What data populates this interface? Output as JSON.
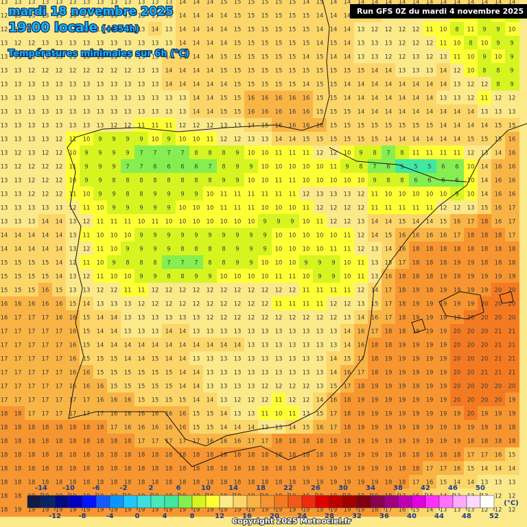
{
  "header": {
    "date": "mardi 18 novembre 2025",
    "time": "19:00 locale",
    "lead": "(+354h)",
    "subtitle": "Températures minimales sur 6h (°C)",
    "run": "Run GFS 0Z du mardi 4 novembre 2025"
  },
  "legend": {
    "unit": "(°C)",
    "ticks": [
      -14,
      -12,
      -10,
      -8,
      -6,
      -4,
      -2,
      0,
      2,
      4,
      6,
      8,
      10,
      12,
      14,
      16,
      18,
      20,
      22,
      24,
      26,
      28,
      30,
      32,
      34,
      36,
      38,
      40,
      42,
      44,
      46,
      48,
      50,
      52
    ],
    "colors": [
      "#141a48",
      "#0a2466",
      "#000a80",
      "#0000c0",
      "#0014ff",
      "#145aff",
      "#0a96ff",
      "#1ec8ff",
      "#3ce0e0",
      "#46eab8",
      "#40e8a0",
      "#86ee50",
      "#d6f520",
      "#ffff36",
      "#fce98a",
      "#fdd66a",
      "#f9b446",
      "#f79530",
      "#f47a22",
      "#f05a18",
      "#ee2a10",
      "#e00000",
      "#c00000",
      "#a00000",
      "#800010",
      "#8c0050",
      "#a00080",
      "#c000b0",
      "#e000e0",
      "#ff30ff",
      "#ff70ff",
      "#ffa8ff",
      "#ffd8ff",
      "#ffffff"
    ]
  },
  "footer": {
    "copyright": "Copyright 2025 Meteociel.fr"
  },
  "grid": {
    "rows": [
      [
        13,
        13,
        13,
        13,
        13,
        13,
        13,
        13,
        13,
        13,
        13,
        13,
        13,
        14,
        14,
        14,
        15,
        15,
        15,
        15,
        15,
        15,
        14,
        15,
        14,
        14,
        14,
        14,
        14,
        14,
        14,
        14,
        14,
        14,
        14,
        14,
        14,
        14
      ],
      [
        12,
        13,
        13,
        13,
        13,
        13,
        13,
        13,
        13,
        13,
        13,
        13,
        13,
        14,
        14,
        14,
        14,
        15,
        15,
        15,
        15,
        15,
        15,
        14,
        14,
        14,
        14,
        14,
        13,
        13,
        12,
        12,
        12,
        11,
        10,
        9,
        10,
        9
      ],
      [
        12,
        12,
        13,
        13,
        13,
        13,
        13,
        13,
        13,
        13,
        13,
        14,
        13,
        14,
        14,
        14,
        14,
        15,
        15,
        15,
        15,
        15,
        15,
        14,
        14,
        14,
        13,
        12,
        12,
        12,
        12,
        11,
        10,
        8,
        11,
        9,
        9,
        10
      ],
      [
        13,
        12,
        12,
        13,
        13,
        13,
        13,
        13,
        13,
        13,
        13,
        13,
        13,
        14,
        14,
        14,
        14,
        15,
        15,
        15,
        15,
        15,
        15,
        14,
        15,
        14,
        13,
        13,
        13,
        12,
        12,
        12,
        11,
        10,
        8,
        10,
        9,
        9
      ],
      [
        13,
        13,
        13,
        13,
        13,
        13,
        13,
        13,
        13,
        13,
        13,
        13,
        14,
        14,
        14,
        14,
        15,
        15,
        15,
        15,
        15,
        15,
        14,
        15,
        14,
        14,
        13,
        13,
        12,
        12,
        13,
        12,
        13,
        11,
        10,
        9,
        10,
        9
      ],
      [
        13,
        13,
        12,
        12,
        12,
        12,
        12,
        12,
        12,
        12,
        13,
        13,
        14,
        14,
        14,
        14,
        15,
        15,
        15,
        15,
        15,
        15,
        15,
        15,
        15,
        15,
        15,
        14,
        14,
        13,
        13,
        13,
        14,
        12,
        10,
        8,
        8,
        9
      ],
      [
        13,
        13,
        13,
        13,
        13,
        13,
        13,
        13,
        13,
        13,
        13,
        13,
        14,
        14,
        14,
        14,
        14,
        15,
        15,
        15,
        15,
        15,
        14,
        15,
        15,
        14,
        14,
        14,
        14,
        14,
        14,
        14,
        14,
        13,
        12,
        12,
        8,
        9
      ],
      [
        13,
        13,
        13,
        13,
        13,
        13,
        13,
        13,
        13,
        13,
        13,
        13,
        13,
        13,
        14,
        14,
        15,
        15,
        16,
        16,
        16,
        16,
        16,
        15,
        15,
        14,
        14,
        14,
        14,
        14,
        14,
        14,
        13,
        13,
        12,
        11,
        12,
        12
      ],
      [
        13,
        13,
        13,
        13,
        13,
        13,
        13,
        13,
        13,
        13,
        13,
        13,
        13,
        13,
        14,
        14,
        15,
        15,
        16,
        16,
        16,
        16,
        16,
        15,
        15,
        15,
        14,
        14,
        14,
        14,
        14,
        14,
        14,
        14,
        14,
        13,
        13,
        13
      ],
      [
        13,
        13,
        13,
        13,
        13,
        13,
        13,
        13,
        12,
        12,
        11,
        11,
        11,
        12,
        12,
        12,
        13,
        13,
        14,
        15,
        16,
        16,
        16,
        16,
        15,
        15,
        15,
        15,
        15,
        15,
        15,
        15,
        14,
        14,
        14,
        14,
        15,
        15
      ],
      [
        13,
        13,
        13,
        13,
        12,
        11,
        10,
        9,
        9,
        9,
        9,
        10,
        9,
        10,
        10,
        11,
        12,
        12,
        13,
        13,
        14,
        14,
        15,
        15,
        15,
        15,
        15,
        15,
        14,
        14,
        14,
        14,
        14,
        14,
        15,
        15,
        15,
        16
      ],
      [
        13,
        12,
        13,
        12,
        12,
        10,
        9,
        9,
        9,
        9,
        7,
        7,
        7,
        7,
        8,
        8,
        8,
        9,
        10,
        10,
        11,
        11,
        11,
        12,
        12,
        10,
        9,
        8,
        7,
        8,
        11,
        11,
        11,
        11,
        12,
        13,
        14,
        16
      ],
      [
        13,
        12,
        12,
        12,
        12,
        11,
        9,
        9,
        9,
        7,
        7,
        6,
        6,
        6,
        6,
        7,
        8,
        9,
        9,
        10,
        10,
        10,
        10,
        10,
        11,
        9,
        8,
        7,
        6,
        5,
        5,
        5,
        6,
        6,
        10,
        14,
        16,
        16
      ],
      [
        13,
        13,
        12,
        12,
        12,
        10,
        9,
        9,
        8,
        8,
        8,
        8,
        8,
        8,
        8,
        8,
        9,
        9,
        10,
        10,
        11,
        11,
        10,
        10,
        10,
        10,
        10,
        9,
        8,
        8,
        6,
        6,
        6,
        6,
        10,
        14,
        16,
        16
      ],
      [
        13,
        13,
        12,
        12,
        12,
        11,
        10,
        9,
        9,
        8,
        8,
        9,
        9,
        9,
        9,
        10,
        11,
        11,
        11,
        11,
        11,
        11,
        12,
        13,
        13,
        13,
        12,
        11,
        10,
        10,
        10,
        10,
        10,
        9,
        10,
        14,
        16,
        16
      ],
      [
        13,
        13,
        13,
        13,
        13,
        12,
        11,
        10,
        9,
        9,
        9,
        9,
        9,
        10,
        10,
        10,
        11,
        11,
        11,
        10,
        10,
        10,
        11,
        12,
        12,
        12,
        12,
        11,
        11,
        11,
        11,
        11,
        12,
        12,
        13,
        15,
        16,
        17
      ],
      [
        13,
        13,
        13,
        14,
        14,
        13,
        12,
        11,
        11,
        11,
        10,
        11,
        10,
        10,
        10,
        10,
        10,
        10,
        10,
        9,
        9,
        9,
        10,
        11,
        12,
        12,
        13,
        14,
        14,
        15,
        14,
        14,
        15,
        16,
        17,
        18,
        16,
        17
      ],
      [
        14,
        14,
        14,
        14,
        14,
        13,
        11,
        10,
        10,
        10,
        9,
        9,
        9,
        9,
        9,
        9,
        9,
        9,
        9,
        9,
        10,
        10,
        10,
        10,
        10,
        11,
        12,
        14,
        15,
        16,
        16,
        16,
        16,
        17,
        18,
        18,
        18,
        17
      ],
      [
        14,
        14,
        14,
        14,
        14,
        13,
        12,
        11,
        10,
        9,
        9,
        9,
        9,
        8,
        8,
        8,
        8,
        9,
        9,
        9,
        10,
        10,
        10,
        10,
        11,
        11,
        12,
        13,
        14,
        16,
        18,
        18,
        18,
        18,
        18,
        18,
        18,
        18
      ],
      [
        15,
        15,
        15,
        15,
        14,
        12,
        11,
        10,
        9,
        8,
        8,
        8,
        7,
        7,
        7,
        8,
        8,
        9,
        9,
        10,
        10,
        10,
        9,
        9,
        9,
        10,
        11,
        13,
        15,
        17,
        18,
        18,
        18,
        19,
        19,
        18,
        18,
        18
      ],
      [
        15,
        15,
        15,
        15,
        14,
        13,
        12,
        11,
        10,
        10,
        9,
        9,
        8,
        8,
        9,
        9,
        10,
        10,
        10,
        10,
        11,
        11,
        10,
        9,
        9,
        10,
        11,
        13,
        16,
        18,
        18,
        18,
        19,
        19,
        19,
        19,
        19,
        19
      ],
      [
        15,
        15,
        15,
        16,
        15,
        13,
        13,
        12,
        12,
        11,
        11,
        12,
        12,
        12,
        12,
        12,
        12,
        12,
        12,
        12,
        12,
        12,
        11,
        11,
        11,
        11,
        12,
        14,
        17,
        18,
        19,
        18,
        19,
        19,
        19,
        19,
        20,
        20
      ],
      [
        16,
        16,
        16,
        16,
        16,
        15,
        14,
        13,
        13,
        13,
        12,
        12,
        12,
        12,
        12,
        12,
        12,
        12,
        12,
        12,
        11,
        11,
        11,
        11,
        12,
        12,
        13,
        15,
        17,
        18,
        19,
        19,
        19,
        19,
        19,
        20,
        20,
        20
      ],
      [
        16,
        17,
        17,
        17,
        16,
        16,
        15,
        14,
        14,
        13,
        13,
        13,
        13,
        13,
        13,
        12,
        12,
        12,
        12,
        12,
        12,
        12,
        12,
        12,
        12,
        13,
        14,
        16,
        17,
        18,
        19,
        19,
        19,
        19,
        20,
        20,
        20,
        20
      ],
      [
        17,
        17,
        17,
        17,
        17,
        16,
        15,
        14,
        14,
        13,
        13,
        13,
        14,
        14,
        13,
        13,
        13,
        13,
        13,
        13,
        13,
        13,
        13,
        13,
        13,
        14,
        16,
        17,
        18,
        18,
        19,
        19,
        19,
        20,
        20,
        20,
        21,
        21
      ],
      [
        17,
        17,
        17,
        17,
        17,
        16,
        15,
        14,
        14,
        14,
        14,
        14,
        14,
        14,
        14,
        14,
        14,
        14,
        13,
        13,
        13,
        13,
        13,
        13,
        13,
        14,
        16,
        18,
        18,
        19,
        19,
        19,
        19,
        20,
        20,
        20,
        21,
        21
      ],
      [
        17,
        17,
        17,
        17,
        17,
        16,
        15,
        15,
        15,
        14,
        14,
        15,
        14,
        14,
        13,
        13,
        13,
        13,
        13,
        13,
        13,
        13,
        13,
        13,
        14,
        15,
        17,
        18,
        19,
        19,
        19,
        19,
        19,
        20,
        20,
        20,
        21,
        21
      ],
      [
        17,
        17,
        17,
        17,
        17,
        16,
        16,
        15,
        15,
        15,
        15,
        15,
        15,
        14,
        14,
        13,
        13,
        13,
        13,
        13,
        13,
        13,
        13,
        13,
        14,
        16,
        17,
        18,
        19,
        19,
        19,
        19,
        19,
        20,
        20,
        21,
        21,
        21
      ],
      [
        17,
        17,
        17,
        17,
        17,
        16,
        16,
        16,
        15,
        15,
        15,
        15,
        15,
        14,
        14,
        13,
        13,
        13,
        13,
        12,
        12,
        12,
        12,
        13,
        15,
        17,
        18,
        19,
        19,
        19,
        19,
        19,
        19,
        20,
        20,
        20,
        20,
        20
      ],
      [
        17,
        17,
        17,
        17,
        17,
        17,
        17,
        16,
        16,
        16,
        15,
        15,
        15,
        15,
        14,
        14,
        13,
        12,
        12,
        12,
        11,
        12,
        12,
        14,
        16,
        18,
        19,
        19,
        19,
        19,
        19,
        19,
        19,
        20,
        20,
        20,
        20,
        19
      ],
      [
        18,
        18,
        17,
        17,
        17,
        17,
        17,
        17,
        16,
        16,
        16,
        16,
        16,
        16,
        15,
        15,
        14,
        13,
        13,
        11,
        10,
        11,
        13,
        15,
        17,
        18,
        19,
        19,
        19,
        19,
        19,
        19,
        19,
        19,
        20,
        19,
        19,
        19
      ],
      [
        18,
        18,
        18,
        18,
        18,
        18,
        18,
        18,
        17,
        16,
        16,
        16,
        16,
        16,
        15,
        15,
        14,
        14,
        14,
        13,
        13,
        14,
        15,
        16,
        17,
        18,
        19,
        19,
        19,
        19,
        19,
        19,
        19,
        19,
        19,
        19,
        18,
        18
      ],
      [
        18,
        18,
        18,
        18,
        18,
        18,
        18,
        18,
        18,
        18,
        17,
        17,
        17,
        17,
        17,
        16,
        16,
        16,
        17,
        17,
        18,
        18,
        18,
        18,
        18,
        18,
        19,
        19,
        19,
        19,
        19,
        19,
        19,
        19,
        18,
        18,
        18,
        18
      ],
      [
        18,
        18,
        18,
        18,
        18,
        18,
        18,
        18,
        18,
        18,
        18,
        18,
        18,
        18,
        18,
        18,
        18,
        18,
        18,
        18,
        18,
        18,
        18,
        18,
        18,
        19,
        19,
        19,
        19,
        18,
        18,
        18,
        18,
        18,
        17,
        17,
        16,
        15
      ],
      [
        18,
        18,
        18,
        18,
        18,
        18,
        18,
        18,
        18,
        18,
        18,
        18,
        18,
        18,
        18,
        18,
        18,
        18,
        18,
        18,
        18,
        18,
        19,
        19,
        19,
        19,
        19,
        19,
        19,
        18,
        18,
        17,
        17,
        16,
        15,
        14,
        14,
        14
      ],
      [
        18,
        18,
        18,
        18,
        18,
        18,
        18,
        18,
        18,
        18,
        18,
        18,
        18,
        18,
        18,
        18,
        18,
        18,
        18,
        18,
        18,
        18,
        19,
        19,
        19,
        19,
        19,
        19,
        18,
        18,
        17,
        16,
        15,
        14,
        14,
        13,
        13,
        13
      ],
      [
        18,
        18,
        19,
        19,
        19,
        19,
        19,
        19,
        19,
        19,
        19,
        19,
        19,
        19,
        19,
        19,
        19,
        19,
        19,
        19,
        19,
        19,
        19,
        19,
        19,
        19,
        19,
        19,
        18,
        17,
        16,
        15,
        14,
        13,
        13,
        13,
        12,
        12
      ],
      [
        18,
        19,
        19,
        19,
        19,
        19,
        19,
        19,
        19,
        19,
        19,
        19,
        19,
        19,
        19,
        19,
        19,
        19,
        19,
        19,
        19,
        19,
        19,
        19,
        19,
        19,
        19,
        18,
        17,
        16,
        15,
        14,
        13,
        13,
        13,
        12,
        12,
        12
      ]
    ]
  }
}
